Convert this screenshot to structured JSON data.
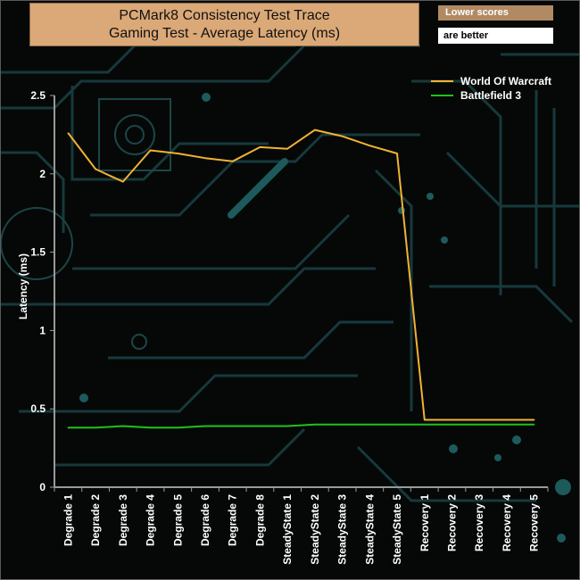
{
  "title_line1": "PCMark8 Consistency Test Trace",
  "title_line2": "Gaming Test -  Average Latency (ms)",
  "note_line1": "Lower scores",
  "note_line2": "are better",
  "colors": {
    "series1": "#f2b233",
    "series2": "#1fc21a",
    "axis": "#9a9a9a",
    "title_bg": "#dba877"
  },
  "chart_data": {
    "type": "line",
    "title": "PCMark8 Consistency Test Trace Gaming Test -  Average Latency (ms)",
    "xlabel": "",
    "ylabel": "Latency (ms)",
    "ylim": [
      0,
      2.5
    ],
    "yticks": [
      "0",
      "0.5",
      "1",
      "1.5",
      "2",
      "2.5"
    ],
    "categories": [
      "Degrade 1",
      "Degrade 2",
      "Degrade 3",
      "Degrade 4",
      "Degrade 5",
      "Degrade 6",
      "Degrade 7",
      "Degrade 8",
      "SteadyState 1",
      "SteadyState 2",
      "SteadyState 3",
      "SteadyState 4",
      "SteadyState 5",
      "Recovery 1",
      "Recovery 2",
      "Recovery 3",
      "Recovery 4",
      "Recovery 5"
    ],
    "legend_position": "top-right",
    "series": [
      {
        "name": "World Of Warcraft",
        "color": "#f2b233",
        "values": [
          2.26,
          2.03,
          1.95,
          2.15,
          2.13,
          2.1,
          2.08,
          2.17,
          2.16,
          2.28,
          2.24,
          2.18,
          2.13,
          0.43,
          0.43,
          0.43,
          0.43,
          0.43
        ]
      },
      {
        "name": "Battlefield 3",
        "color": "#1fc21a",
        "values": [
          0.38,
          0.38,
          0.39,
          0.38,
          0.38,
          0.39,
          0.39,
          0.39,
          0.39,
          0.4,
          0.4,
          0.4,
          0.4,
          0.4,
          0.4,
          0.4,
          0.4,
          0.4
        ]
      }
    ]
  }
}
